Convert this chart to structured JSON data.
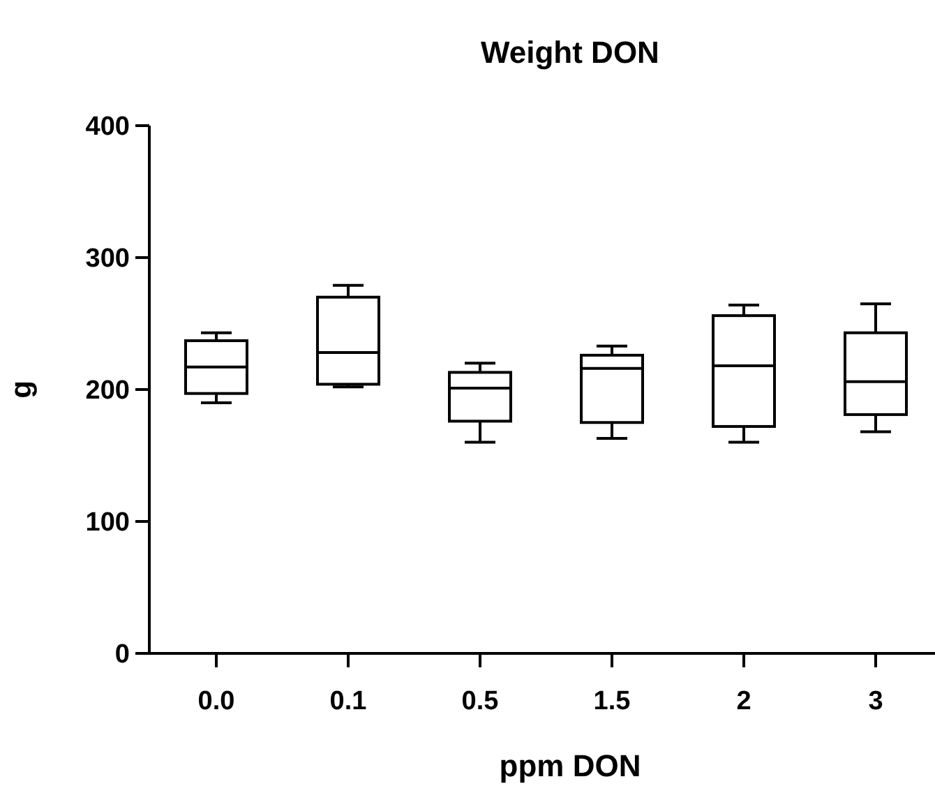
{
  "chart_data": {
    "type": "box",
    "title": "Weight DON",
    "xlabel": "ppm DON",
    "ylabel": "g",
    "categories": [
      "0.0",
      "0.1",
      "0.5",
      "1.5",
      "2",
      "3"
    ],
    "boxes": [
      {
        "low": 190,
        "q1": 197,
        "median": 217,
        "q3": 237,
        "high": 243
      },
      {
        "low": 202,
        "q1": 204,
        "median": 228,
        "q3": 270,
        "high": 279
      },
      {
        "low": 160,
        "q1": 176,
        "median": 201,
        "q3": 213,
        "high": 220
      },
      {
        "low": 163,
        "q1": 175,
        "median": 216,
        "q3": 226,
        "high": 233
      },
      {
        "low": 160,
        "q1": 172,
        "median": 218,
        "q3": 256,
        "high": 264
      },
      {
        "low": 168,
        "q1": 181,
        "median": 206,
        "q3": 243,
        "high": 265
      }
    ],
    "ylim": [
      0,
      400
    ],
    "yticks": [
      0,
      100,
      200,
      300,
      400
    ],
    "grid": false
  }
}
